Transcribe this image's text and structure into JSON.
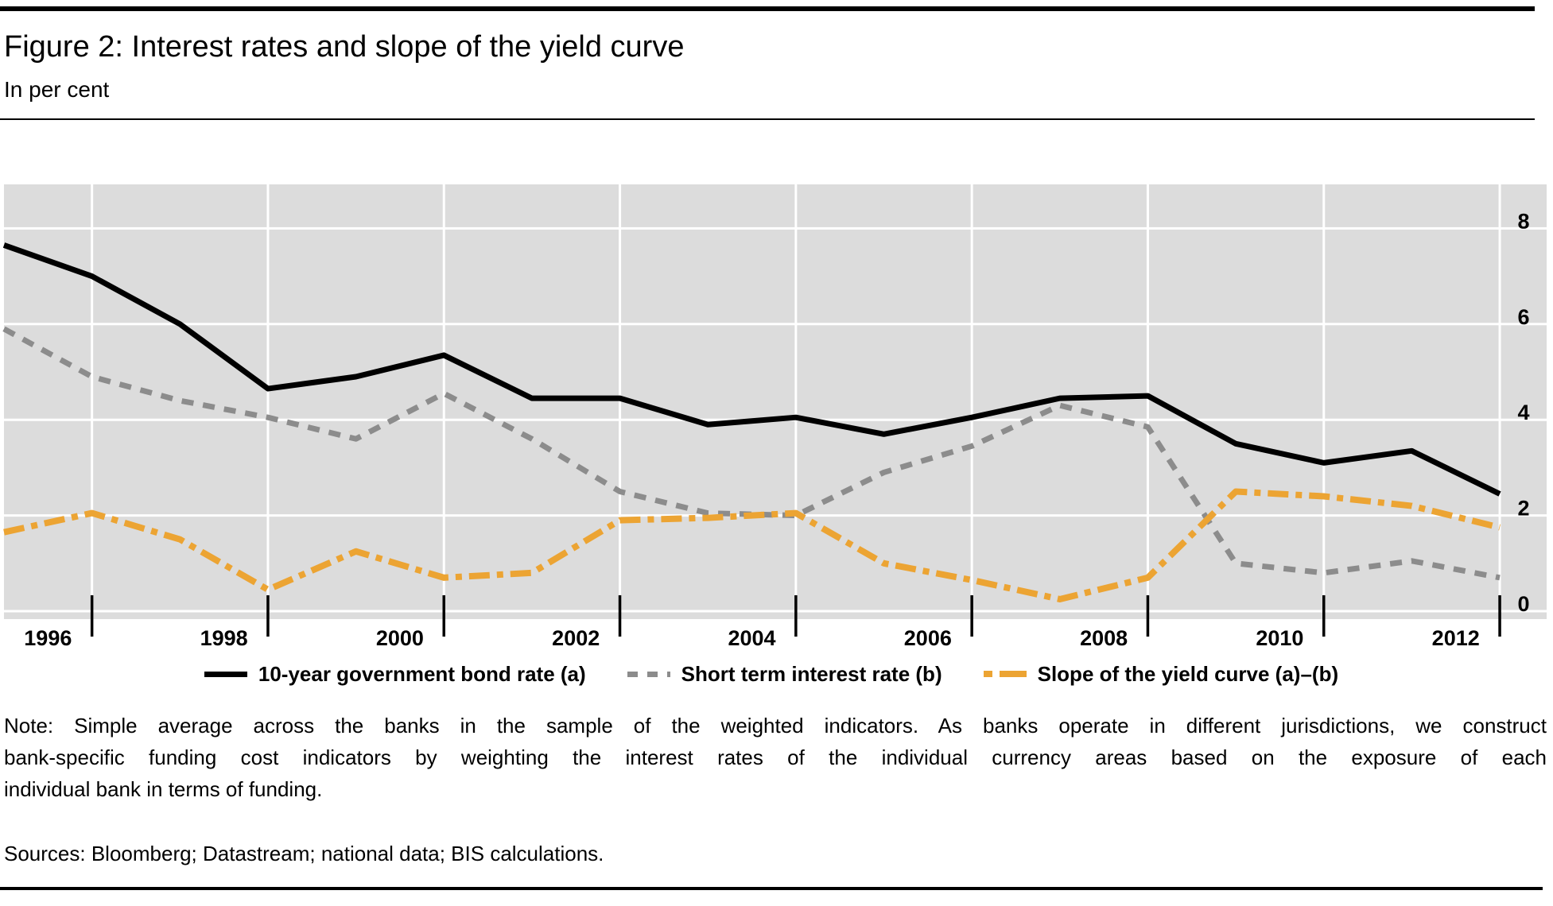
{
  "header": {
    "title": "Figure 2: Interest rates and slope of the yield curve",
    "subtitle": "In per cent"
  },
  "chart_data": {
    "type": "line",
    "title": "Figure 2: Interest rates and slope of the yield curve",
    "ylabel": "In per cent",
    "x": [
      1996,
      1997,
      1998,
      1999,
      2000,
      2001,
      2002,
      2003,
      2004,
      2005,
      2006,
      2007,
      2008,
      2009,
      2010,
      2011,
      2012,
      2013
    ],
    "series": [
      {
        "name": "10-year government bond rate (a)",
        "color": "#000000",
        "style": "solid",
        "values": [
          7.65,
          7.0,
          6.0,
          4.65,
          4.9,
          5.35,
          4.45,
          4.45,
          3.9,
          4.05,
          3.7,
          4.05,
          4.45,
          4.5,
          3.5,
          3.1,
          3.35,
          2.45
        ]
      },
      {
        "name": "Short term interest rate (b)",
        "color": "#8C8C8C",
        "style": "dashed",
        "values": [
          5.9,
          4.9,
          4.4,
          4.05,
          3.6,
          4.55,
          3.6,
          2.5,
          2.05,
          2.0,
          2.9,
          3.45,
          4.3,
          3.85,
          1.0,
          0.8,
          1.05,
          0.7
        ]
      },
      {
        "name": "Slope of the yield curve (a)–(b)",
        "color": "#ECA433",
        "style": "dashdot",
        "values": [
          1.65,
          2.05,
          1.5,
          0.45,
          1.25,
          0.7,
          0.8,
          1.9,
          1.95,
          2.05,
          1.0,
          0.65,
          0.25,
          0.7,
          2.5,
          2.4,
          2.2,
          1.75
        ]
      }
    ],
    "x_label_years": [
      1996,
      1998,
      2000,
      2002,
      2004,
      2006,
      2008,
      2010,
      2012
    ],
    "x_gridline_years": [
      1997,
      1999,
      2001,
      2003,
      2005,
      2007,
      2009,
      2011,
      2013
    ],
    "yticks": [
      0,
      2,
      4,
      6,
      8
    ],
    "ylim": [
      -0.17,
      8.92
    ],
    "xlim": [
      1996,
      2013.55
    ],
    "grid": true,
    "plot_bg": "#DCDCDC",
    "gridline_color": "#FFFFFF",
    "legend_position": "bottom"
  },
  "legend": {
    "items": [
      {
        "label": "10-year government bond rate (a)"
      },
      {
        "label": "Short term interest rate (b)"
      },
      {
        "label": "Slope of the yield curve (a)–(b)"
      }
    ]
  },
  "note": {
    "lines": [
      "Note: Simple average across the banks in the sample of the weighted indicators. As banks operate in different jurisdictions, we construct",
      "bank-specific funding cost indicators by weighting the interest rates of the individual currency areas based on the exposure of each",
      "individual bank in terms of funding."
    ]
  },
  "sources": "Sources: Bloomberg; Datastream; national data; BIS calculations."
}
